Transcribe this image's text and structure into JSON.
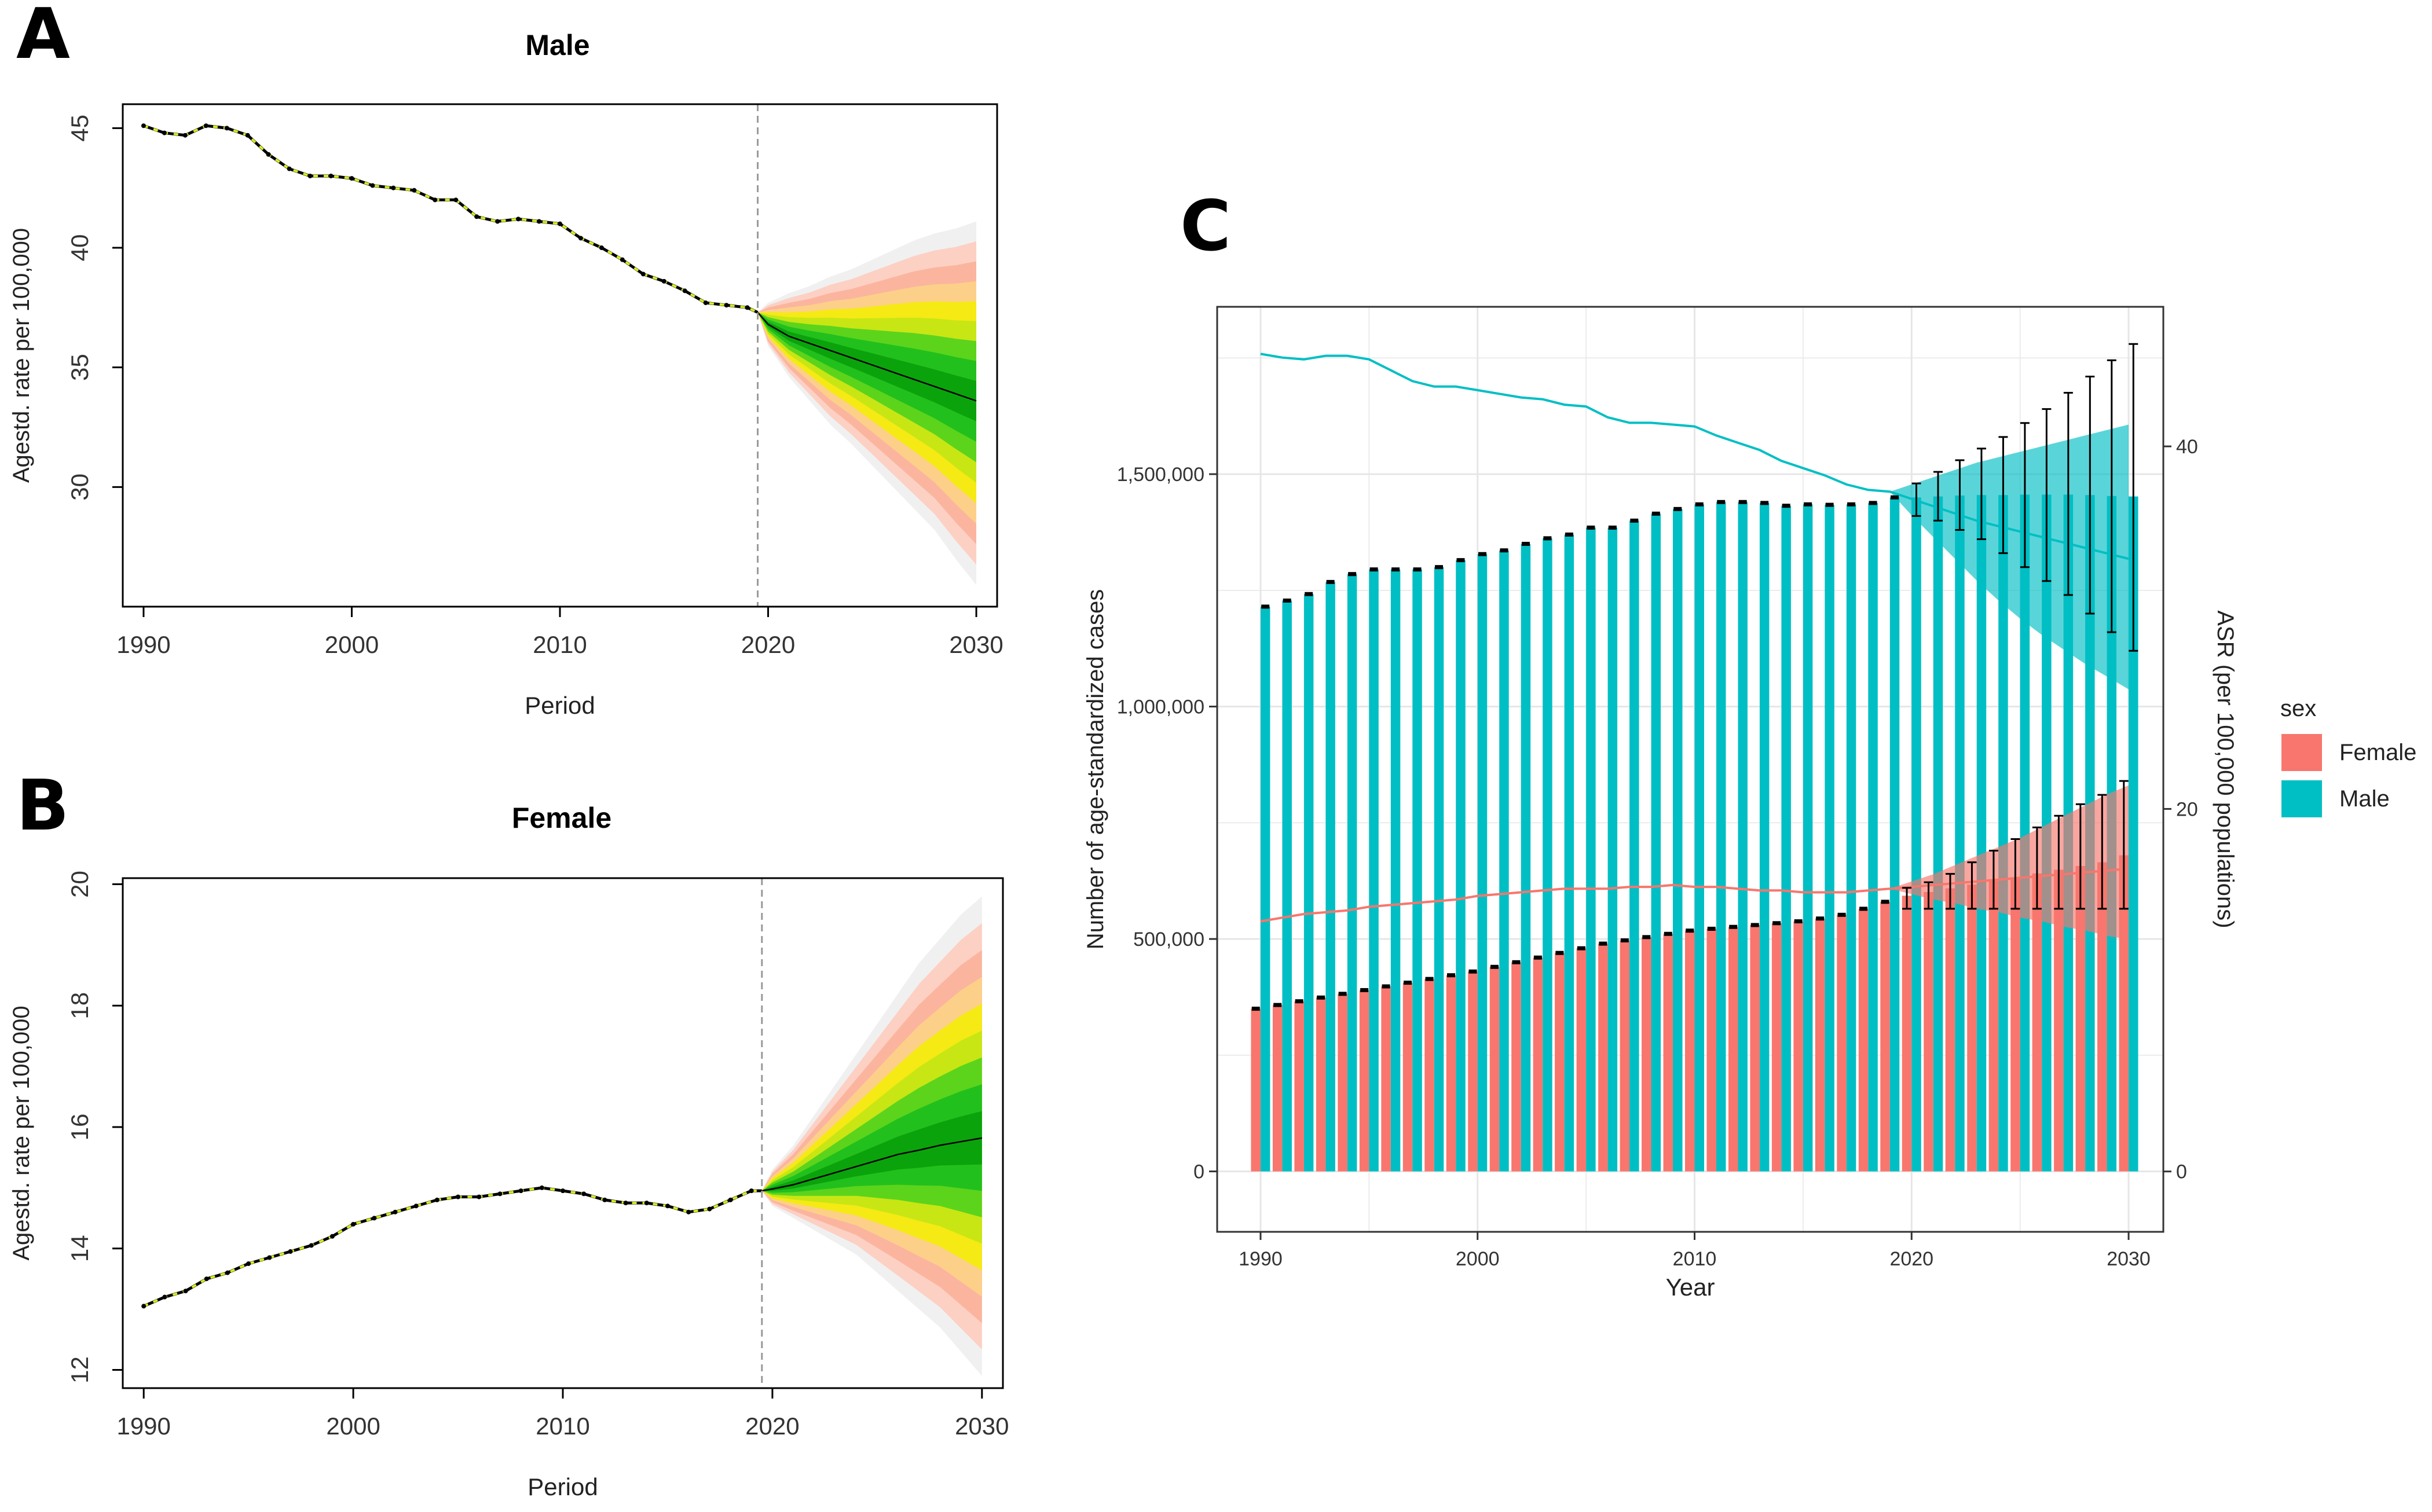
{
  "panels": {
    "A": {
      "letter": "A",
      "title": "Male"
    },
    "B": {
      "letter": "B",
      "title": "Female"
    },
    "C": {
      "letter": "C"
    }
  },
  "colors": {
    "fan": [
      "#f0f0f0",
      "#fdd0c4",
      "#fbb59e",
      "#fdd08a",
      "#f5ea14",
      "#c8e614",
      "#5cd41c",
      "#22c01c",
      "#0ba30b"
    ],
    "female": "#f8766d",
    "male": "#00bfc4",
    "history_line": "#000000",
    "history_dash": "#d9ef1c",
    "vline": "#999999"
  },
  "chart_data": [
    {
      "panel": "A",
      "type": "line",
      "title": "Male",
      "xlabel": "Period",
      "ylabel": "Agestd. rate per 100,000",
      "xlim": [
        1989,
        2031
      ],
      "ylim": [
        25,
        46
      ],
      "xticks": [
        1990,
        2000,
        2010,
        2020,
        2030
      ],
      "yticks": [
        30,
        35,
        40,
        45
      ],
      "forecast_start": 2019.5,
      "observed": {
        "x": [
          1990,
          1991,
          1992,
          1993,
          1994,
          1995,
          1996,
          1997,
          1998,
          1999,
          2000,
          2001,
          2002,
          2003,
          2004,
          2005,
          2006,
          2007,
          2008,
          2009,
          2010,
          2011,
          2012,
          2013,
          2014,
          2015,
          2016,
          2017,
          2018,
          2019
        ],
        "y": [
          45.1,
          44.8,
          44.7,
          45.1,
          45.0,
          44.7,
          43.9,
          43.3,
          43.0,
          43.0,
          42.9,
          42.6,
          42.5,
          42.4,
          42.0,
          42.0,
          41.3,
          41.1,
          41.2,
          41.1,
          41.0,
          40.4,
          40.0,
          39.5,
          38.9,
          38.6,
          38.2,
          37.7,
          37.6,
          37.5
        ]
      },
      "forecast": {
        "x": [
          2019.5,
          2020,
          2021,
          2022,
          2023,
          2024,
          2025,
          2026,
          2027,
          2028,
          2029,
          2030
        ],
        "median": [
          37.3,
          36.8,
          36.3,
          36.0,
          35.7,
          35.4,
          35.1,
          34.8,
          34.5,
          34.2,
          33.9,
          33.6
        ],
        "upper_90": [
          37.3,
          37.7,
          38.1,
          38.4,
          38.8,
          39.1,
          39.5,
          39.9,
          40.3,
          40.6,
          40.8,
          41.1
        ],
        "lower_90": [
          37.3,
          35.9,
          34.6,
          33.6,
          32.6,
          31.8,
          30.9,
          30.0,
          29.1,
          28.2,
          27.0,
          25.9
        ]
      }
    },
    {
      "panel": "B",
      "type": "line",
      "title": "Female",
      "xlabel": "Period",
      "ylabel": "Agestd. rate per 100,000",
      "xlim": [
        1989,
        2031
      ],
      "ylim": [
        11.7,
        20.1
      ],
      "xticks": [
        1990,
        2000,
        2010,
        2020,
        2030
      ],
      "yticks": [
        12,
        14,
        16,
        18,
        20
      ],
      "forecast_start": 2019.5,
      "observed": {
        "x": [
          1990,
          1991,
          1992,
          1993,
          1994,
          1995,
          1996,
          1997,
          1998,
          1999,
          2000,
          2001,
          2002,
          2003,
          2004,
          2005,
          2006,
          2007,
          2008,
          2009,
          2010,
          2011,
          2012,
          2013,
          2014,
          2015,
          2016,
          2017,
          2018,
          2019
        ],
        "y": [
          13.05,
          13.2,
          13.3,
          13.5,
          13.6,
          13.75,
          13.85,
          13.95,
          14.05,
          14.2,
          14.4,
          14.5,
          14.6,
          14.7,
          14.8,
          14.85,
          14.85,
          14.9,
          14.95,
          15.0,
          14.95,
          14.9,
          14.8,
          14.75,
          14.75,
          14.7,
          14.6,
          14.65,
          14.8,
          14.95
        ]
      },
      "forecast": {
        "x": [
          2019.5,
          2020,
          2021,
          2022,
          2023,
          2024,
          2025,
          2026,
          2027,
          2028,
          2029,
          2030
        ],
        "median": [
          14.95,
          14.98,
          15.05,
          15.15,
          15.25,
          15.35,
          15.45,
          15.55,
          15.62,
          15.7,
          15.76,
          15.82
        ],
        "upper_90": [
          14.95,
          15.3,
          15.7,
          16.2,
          16.7,
          17.2,
          17.7,
          18.2,
          18.7,
          19.1,
          19.5,
          19.8
        ],
        "lower_90": [
          14.95,
          14.7,
          14.5,
          14.3,
          14.1,
          13.9,
          13.6,
          13.3,
          13.0,
          12.7,
          12.3,
          11.9
        ]
      }
    },
    {
      "panel": "C",
      "type": "bar",
      "xlabel": "Year",
      "ylabel": "Number of age-standardized cases",
      "y2label": "ASR (per 100,000 populations)",
      "legend_title": "sex",
      "legend_position": "right",
      "grid": true,
      "ylim": [
        -130000,
        1860000
      ],
      "y2lim": [
        -3.33,
        47.7
      ],
      "xticks": [
        1990,
        2000,
        2010,
        2020,
        2030
      ],
      "yticks": [
        0,
        500000,
        1000000,
        1500000
      ],
      "ytick_labels": [
        "0",
        "500,000",
        "1,000,000",
        "1,500,000"
      ],
      "y2ticks": [
        0,
        20,
        40
      ],
      "categories": [
        1990,
        1991,
        1992,
        1993,
        1994,
        1995,
        1996,
        1997,
        1998,
        1999,
        2000,
        2001,
        2002,
        2003,
        2004,
        2005,
        2006,
        2007,
        2008,
        2009,
        2010,
        2011,
        2012,
        2013,
        2014,
        2015,
        2016,
        2017,
        2018,
        2019,
        2020,
        2021,
        2022,
        2023,
        2024,
        2025,
        2026,
        2027,
        2028,
        2029,
        2030
      ],
      "series": [
        {
          "name": "Female",
          "values": [
            350000,
            358000,
            366000,
            374000,
            382000,
            390000,
            398000,
            406000,
            414000,
            422000,
            430000,
            440000,
            450000,
            460000,
            470000,
            480000,
            490000,
            497000,
            504000,
            511000,
            518000,
            522000,
            526000,
            530000,
            534000,
            538000,
            544000,
            552000,
            565000,
            580000,
            593000,
            601000,
            609000,
            617000,
            625000,
            633000,
            641000,
            649000,
            657000,
            665000,
            680000
          ],
          "error_low": [
            null,
            null,
            null,
            null,
            null,
            null,
            null,
            null,
            null,
            null,
            null,
            null,
            null,
            null,
            null,
            null,
            null,
            null,
            null,
            null,
            null,
            null,
            null,
            null,
            null,
            null,
            null,
            null,
            null,
            null,
            565000,
            565000,
            565000,
            565000,
            565000,
            565000,
            565000,
            565000,
            565000,
            565000,
            565000
          ],
          "error_high": [
            null,
            null,
            null,
            null,
            null,
            null,
            null,
            null,
            null,
            null,
            null,
            null,
            null,
            null,
            null,
            null,
            null,
            null,
            null,
            null,
            null,
            null,
            null,
            null,
            null,
            null,
            null,
            null,
            null,
            null,
            610000,
            622000,
            640000,
            665000,
            690000,
            715000,
            740000,
            765000,
            790000,
            810000,
            840000
          ],
          "asr": [
            13.8,
            14.0,
            14.2,
            14.3,
            14.4,
            14.6,
            14.7,
            14.8,
            14.9,
            15.0,
            15.2,
            15.3,
            15.4,
            15.5,
            15.6,
            15.6,
            15.6,
            15.7,
            15.7,
            15.8,
            15.7,
            15.7,
            15.6,
            15.5,
            15.5,
            15.4,
            15.4,
            15.4,
            15.5,
            15.6,
            15.7,
            15.8,
            15.9,
            16.0,
            16.1,
            16.2,
            16.3,
            16.4,
            16.5,
            16.6,
            16.7
          ],
          "asr_low": [
            null,
            null,
            null,
            null,
            null,
            null,
            null,
            null,
            null,
            null,
            null,
            null,
            null,
            null,
            null,
            null,
            null,
            null,
            null,
            null,
            null,
            null,
            null,
            null,
            null,
            null,
            null,
            null,
            null,
            15.6,
            15.3,
            15.0,
            14.8,
            14.5,
            14.3,
            14.0,
            13.8,
            13.5,
            13.3,
            13.0,
            12.8
          ],
          "asr_high": [
            null,
            null,
            null,
            null,
            null,
            null,
            null,
            null,
            null,
            null,
            null,
            null,
            null,
            null,
            null,
            null,
            null,
            null,
            null,
            null,
            null,
            null,
            null,
            null,
            null,
            null,
            null,
            null,
            null,
            15.6,
            16.0,
            16.4,
            16.9,
            17.4,
            17.9,
            18.4,
            19.0,
            19.6,
            20.2,
            20.8,
            21.3
          ]
        },
        {
          "name": "Male",
          "values": [
            1215000,
            1228000,
            1242000,
            1268000,
            1285000,
            1295000,
            1295000,
            1295000,
            1300000,
            1315000,
            1328000,
            1336000,
            1350000,
            1362000,
            1370000,
            1385000,
            1385000,
            1400000,
            1415000,
            1425000,
            1435000,
            1440000,
            1440000,
            1438000,
            1432000,
            1435000,
            1434000,
            1435000,
            1438000,
            1450000,
            1450000,
            1452000,
            1454000,
            1455000,
            1455000,
            1456000,
            1456000,
            1456000,
            1455000,
            1453000,
            1452000
          ],
          "error_low": [
            null,
            null,
            null,
            null,
            null,
            null,
            null,
            null,
            null,
            null,
            null,
            null,
            null,
            null,
            null,
            null,
            null,
            null,
            null,
            null,
            null,
            null,
            null,
            null,
            null,
            null,
            null,
            null,
            null,
            null,
            1410000,
            1400000,
            1380000,
            1360000,
            1330000,
            1300000,
            1270000,
            1240000,
            1200000,
            1160000,
            1120000
          ],
          "error_high": [
            null,
            null,
            null,
            null,
            null,
            null,
            null,
            null,
            null,
            null,
            null,
            null,
            null,
            null,
            null,
            null,
            null,
            null,
            null,
            null,
            null,
            null,
            null,
            null,
            null,
            null,
            null,
            null,
            null,
            null,
            1480000,
            1505000,
            1530000,
            1555000,
            1580000,
            1610000,
            1640000,
            1675000,
            1710000,
            1745000,
            1780000
          ],
          "asr": [
            45.1,
            44.9,
            44.8,
            45.0,
            45.0,
            44.8,
            44.2,
            43.6,
            43.3,
            43.3,
            43.1,
            42.9,
            42.7,
            42.6,
            42.3,
            42.2,
            41.6,
            41.3,
            41.3,
            41.2,
            41.1,
            40.6,
            40.2,
            39.8,
            39.2,
            38.8,
            38.4,
            37.9,
            37.6,
            37.5,
            37.1,
            36.7,
            36.3,
            35.9,
            35.6,
            35.3,
            35.0,
            34.7,
            34.4,
            34.1,
            33.8
          ],
          "asr_low": [
            null,
            null,
            null,
            null,
            null,
            null,
            null,
            null,
            null,
            null,
            null,
            null,
            null,
            null,
            null,
            null,
            null,
            null,
            null,
            null,
            null,
            null,
            null,
            null,
            null,
            null,
            null,
            null,
            null,
            37.5,
            36.2,
            35.0,
            33.8,
            32.6,
            31.5,
            30.5,
            29.6,
            28.8,
            28.0,
            27.3,
            26.6
          ],
          "asr_high": [
            null,
            null,
            null,
            null,
            null,
            null,
            null,
            null,
            null,
            null,
            null,
            null,
            null,
            null,
            null,
            null,
            null,
            null,
            null,
            null,
            null,
            null,
            null,
            null,
            null,
            null,
            null,
            null,
            null,
            37.5,
            37.9,
            38.3,
            38.7,
            39.1,
            39.4,
            39.7,
            40.0,
            40.3,
            40.6,
            40.9,
            41.2
          ]
        }
      ]
    }
  ]
}
